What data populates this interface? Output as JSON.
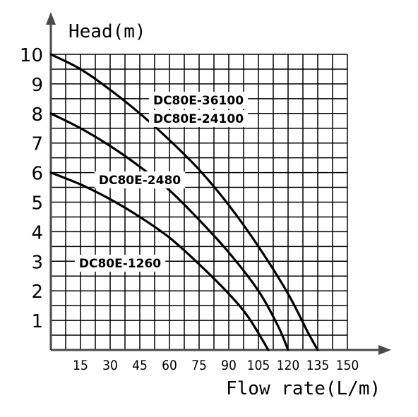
{
  "chart_data": {
    "type": "line",
    "title": "",
    "ylabel": "Head(m)",
    "xlabel": "Flow rate(L/m)",
    "xlim": [
      0,
      150
    ],
    "ylim": [
      0,
      10
    ],
    "grid": true,
    "x_ticks": [
      "15",
      "30",
      "45",
      "60",
      "75",
      "90",
      "105",
      "120",
      "135",
      "150"
    ],
    "y_ticks": [
      "1",
      "2",
      "3",
      "4",
      "5",
      "6",
      "7",
      "8",
      "9",
      "10"
    ],
    "series": [
      {
        "name": "DC80E-36100",
        "x": [
          0,
          15,
          30,
          45,
          60,
          75,
          90,
          105,
          120,
          130,
          135
        ],
        "y": [
          10,
          9.5,
          8.8,
          8.0,
          7.1,
          6.1,
          4.9,
          3.5,
          1.9,
          0.6,
          0
        ]
      },
      {
        "name": "DC80E-24100",
        "x": [
          0,
          15,
          30,
          45,
          60,
          75,
          90,
          105,
          115,
          120
        ],
        "y": [
          8,
          7.5,
          6.9,
          6.2,
          5.4,
          4.4,
          3.3,
          2.0,
          0.8,
          0
        ]
      },
      {
        "name": "DC80E-2480",
        "x": [
          0,
          15,
          30,
          45,
          60,
          75,
          90,
          100,
          110
        ],
        "y": [
          6,
          5.6,
          5.1,
          4.5,
          3.8,
          2.9,
          1.9,
          1.1,
          0
        ]
      },
      {
        "name": "DC80E-1260",
        "x": [],
        "y": []
      }
    ]
  }
}
